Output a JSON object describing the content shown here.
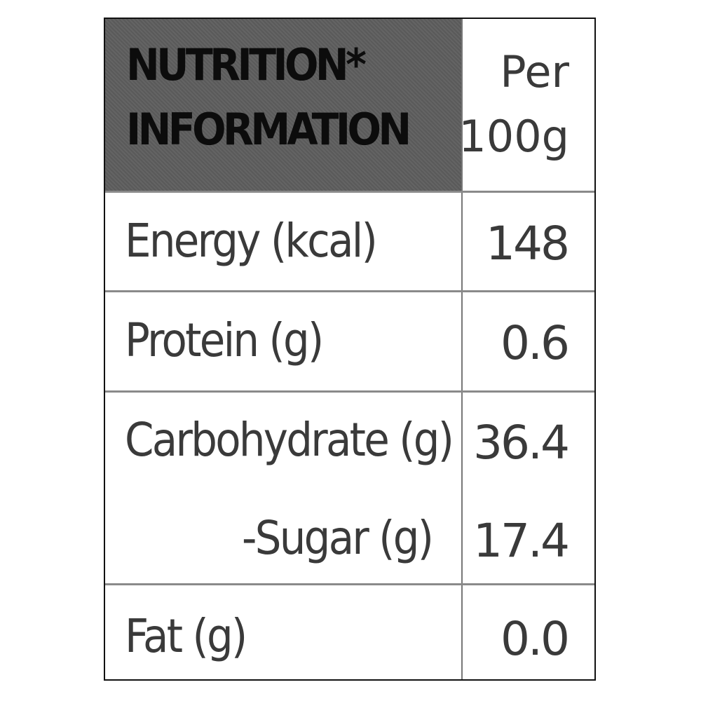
{
  "header": {
    "title_line1": "NUTRITION*",
    "title_line2": "INFORMATION",
    "column_line1": "Per",
    "column_line2": "100g"
  },
  "rows": [
    {
      "label": "Energy (kcal)",
      "value": "148"
    },
    {
      "label": "Protein (g)",
      "value": "0.6"
    },
    {
      "label": "Carbohydrate (g)",
      "value": "36.4"
    },
    {
      "label": "-Sugar (g)",
      "value": "17.4"
    },
    {
      "label": "Fat (g)",
      "value": "0.0"
    }
  ]
}
